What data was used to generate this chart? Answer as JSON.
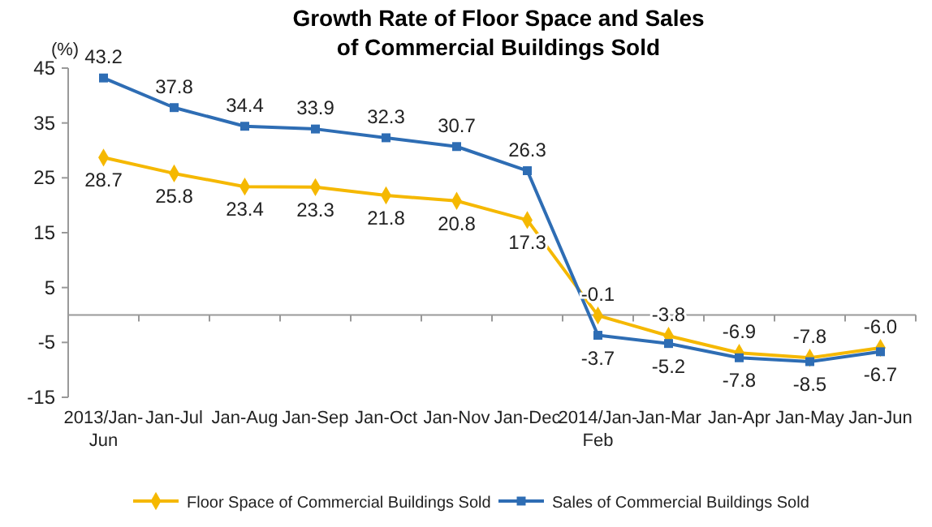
{
  "chart_data": {
    "type": "line",
    "title": "Growth Rate of Floor Space and Sales\nof Commercial Buildings Sold",
    "ylabel": "(%)",
    "categories": [
      "2013/Jan-Jun",
      "Jan-Jul",
      "Jan-Aug",
      "Jan-Sep",
      "Jan-Oct",
      "Jan-Nov",
      "Jan-Dec",
      "2014/Jan-Feb",
      "Jan-Mar",
      "Jan-Apr",
      "Jan-May",
      "Jan-Jun"
    ],
    "series": [
      {
        "name": "Floor Space of Commercial Buildings Sold",
        "color": "#f5b800",
        "marker": "diamond",
        "values": [
          28.7,
          25.8,
          23.4,
          23.3,
          21.8,
          20.8,
          17.3,
          -0.1,
          -3.8,
          -6.9,
          -7.8,
          -6.0
        ],
        "value_labels": [
          "28.7",
          "25.8",
          "23.4",
          "23.3",
          "21.8",
          "20.8",
          "17.3",
          "-0.1",
          "-3.8",
          "-6.9",
          "-7.8",
          "-6.0"
        ]
      },
      {
        "name": "Sales of Commercial Buildings Sold",
        "color": "#2e6db4",
        "marker": "square",
        "values": [
          43.2,
          37.8,
          34.4,
          33.9,
          32.3,
          30.7,
          26.3,
          -3.7,
          -5.2,
          -7.8,
          -8.5,
          -6.7
        ],
        "value_labels": [
          "43.2",
          "37.8",
          "34.4",
          "33.9",
          "32.3",
          "30.7",
          "26.3",
          "-3.7",
          "-5.2",
          "-7.8",
          "-8.5",
          "-6.7"
        ]
      }
    ],
    "ylim": [
      -15,
      45
    ],
    "yticks": [
      -15,
      -5,
      5,
      15,
      25,
      35,
      45
    ],
    "grid": false,
    "legend": "bottom",
    "line_style": "solid"
  }
}
